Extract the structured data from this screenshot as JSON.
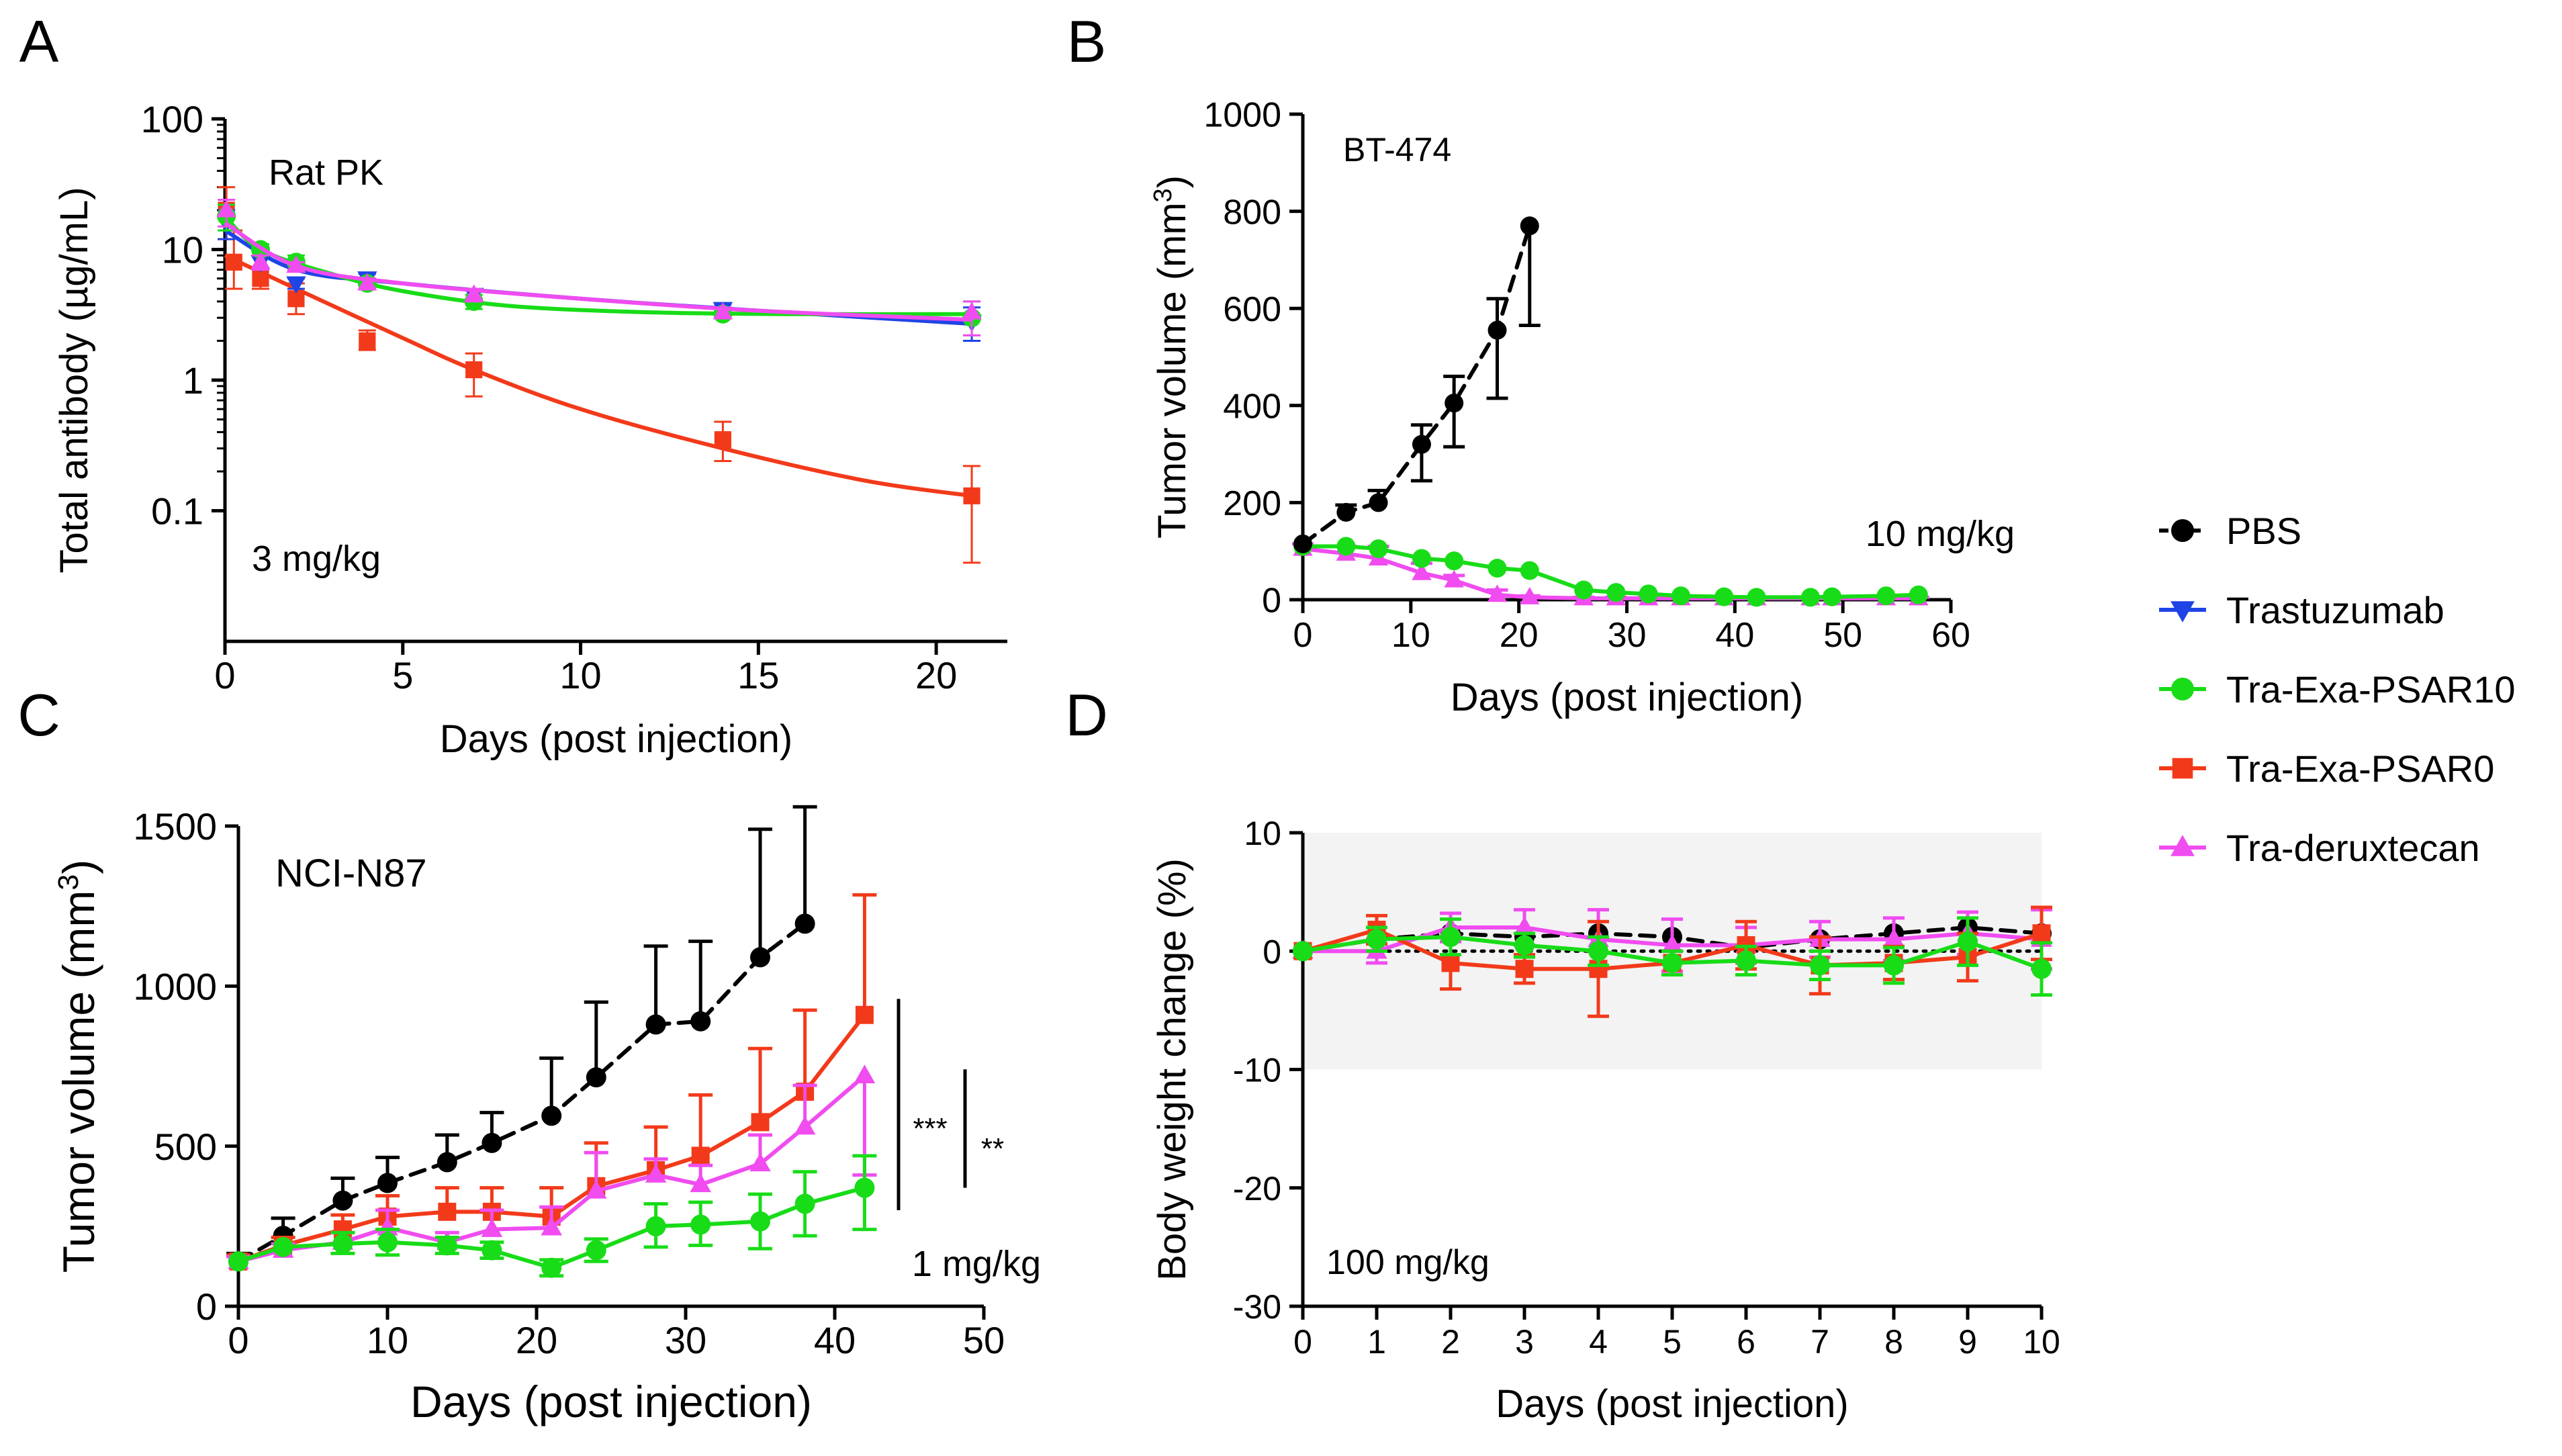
{
  "figure": {
    "series_colors": {
      "PBS": "#000000",
      "Trastuzumab": "#1f44e6",
      "Tra-Exa-PSAR10": "#18dc18",
      "Tra-Exa-PSAR0": "#f23a1a",
      "Tra-deruxtecan": "#f04cf0"
    },
    "legend": {
      "placement": "right-middle",
      "entries": [
        {
          "name": "PBS",
          "marker": "circle",
          "line": "dashed"
        },
        {
          "name": "Trastuzumab",
          "marker": "triangle-down",
          "line": "solid"
        },
        {
          "name": "Tra-Exa-PSAR10",
          "marker": "circle",
          "line": "solid"
        },
        {
          "name": "Tra-Exa-PSAR0",
          "marker": "square",
          "line": "solid"
        },
        {
          "name": "Tra-deruxtecan",
          "marker": "triangle-up",
          "line": "solid"
        }
      ]
    }
  },
  "chart_data": [
    {
      "panel": "A",
      "type": "scatter",
      "title": "Rat PK",
      "annotation": "3 mg/kg",
      "xlabel": "Days (post injection)",
      "ylabel": "Total antibody (µg/mL)",
      "xlim": [
        0,
        22
      ],
      "ylim": [
        0.01,
        100
      ],
      "yscale": "log",
      "xticks": [
        0,
        5,
        10,
        15,
        20
      ],
      "yticks": [
        0.1,
        1,
        10,
        100
      ],
      "ytick_labels": [
        "0.1",
        "1",
        "10",
        "100"
      ],
      "series": [
        {
          "name": "Tra-Exa-PSAR0",
          "marker": "square",
          "x": [
            0.04,
            0.25,
            1,
            2,
            4,
            7,
            14,
            21
          ],
          "y": [
            20,
            8,
            6,
            4.2,
            2,
            1.2,
            0.35,
            0.13
          ],
          "err": [
            [
              12,
              30
            ],
            [
              5,
              14
            ],
            [
              5,
              7
            ],
            [
              3.2,
              5.5
            ],
            [
              1.7,
              2.4
            ],
            [
              0.75,
              1.6
            ],
            [
              0.24,
              0.48
            ],
            [
              0.04,
              0.22
            ]
          ],
          "fit": [
            [
              0,
              9
            ],
            [
              2,
              5
            ],
            [
              5,
              2.1
            ],
            [
              7,
              1.2
            ],
            [
              10,
              0.6
            ],
            [
              14,
              0.3
            ],
            [
              18,
              0.17
            ],
            [
              21,
              0.13
            ]
          ]
        },
        {
          "name": "Trastuzumab",
          "marker": "triangle-down",
          "x": [
            0.04,
            1,
            2,
            4,
            7,
            14,
            21
          ],
          "y": [
            16,
            8,
            5.5,
            6,
            4.5,
            3.5,
            2.8
          ],
          "err": [
            [
              12,
              20
            ],
            [
              7,
              9
            ],
            [
              5,
              6
            ],
            [
              5.5,
              6.5
            ],
            [
              4,
              5
            ],
            [
              3.2,
              3.8
            ],
            [
              2,
              3.6
            ]
          ],
          "fit": [
            [
              0,
              14
            ],
            [
              2,
              7
            ],
            [
              5,
              5.5
            ],
            [
              10,
              4.2
            ],
            [
              15,
              3.4
            ],
            [
              21,
              2.7
            ]
          ]
        },
        {
          "name": "Tra-Exa-PSAR10",
          "marker": "circle",
          "x": [
            0.04,
            1,
            2,
            4,
            7,
            14,
            21
          ],
          "y": [
            18,
            10,
            8,
            5.5,
            4,
            3.2,
            3
          ],
          "err": [
            [
              14,
              22
            ],
            [
              9,
              11
            ],
            [
              7,
              9
            ],
            [
              5,
              6
            ],
            [
              3.5,
              4.5
            ],
            [
              3,
              3.6
            ],
            [
              2.2,
              4
            ]
          ],
          "fit": [
            [
              0,
              18
            ],
            [
              1,
              10
            ],
            [
              3,
              6.5
            ],
            [
              5,
              4.8
            ],
            [
              8,
              3.7
            ],
            [
              12,
              3.3
            ],
            [
              16,
              3.2
            ],
            [
              21,
              3.2
            ]
          ]
        },
        {
          "name": "Tra-deruxtecan",
          "marker": "triangle-up",
          "x": [
            0.04,
            1,
            2,
            4,
            7,
            14,
            21
          ],
          "y": [
            20,
            8,
            7.5,
            5.5,
            4.5,
            3.3,
            3.3
          ],
          "err": [
            [
              15,
              24
            ],
            [
              7,
              9
            ],
            [
              7,
              8
            ],
            [
              5,
              6
            ],
            [
              4,
              5
            ],
            [
              3,
              3.6
            ],
            [
              2.2,
              4
            ]
          ],
          "fit": [
            [
              0,
              16
            ],
            [
              2,
              7.5
            ],
            [
              5,
              5.5
            ],
            [
              10,
              4.2
            ],
            [
              15,
              3.4
            ],
            [
              21,
              2.9
            ]
          ]
        }
      ]
    },
    {
      "panel": "B",
      "type": "line",
      "title": "BT-474",
      "annotation": "10 mg/kg",
      "xlabel": "Days (post injection)",
      "ylabel": "Tumor volume (mm",
      "ylabel_sup": "3",
      "ylabel_close": ")",
      "xlim": [
        0,
        60
      ],
      "ylim": [
        0,
        1000
      ],
      "xticks": [
        0,
        10,
        20,
        30,
        40,
        50,
        60
      ],
      "yticks": [
        0,
        200,
        400,
        600,
        800,
        1000
      ],
      "series": [
        {
          "name": "PBS",
          "marker": "circle",
          "dashed": true,
          "x": [
            0,
            4,
            7,
            11,
            14,
            18,
            21
          ],
          "y": [
            115,
            180,
            200,
            320,
            405,
            555,
            770
          ],
          "err_hi": [
            0,
            195,
            225,
            360,
            460,
            620,
            0
          ],
          "err_lo": [
            0,
            0,
            0,
            245,
            315,
            415,
            565
          ]
        },
        {
          "name": "Tra-Exa-PSAR10",
          "marker": "circle",
          "x": [
            0,
            4,
            7,
            11,
            14,
            18,
            21,
            26,
            29,
            32,
            35,
            39,
            42,
            47,
            49,
            54,
            57
          ],
          "y": [
            110,
            110,
            105,
            85,
            80,
            65,
            60,
            20,
            15,
            12,
            8,
            6,
            5,
            5,
            6,
            8,
            10
          ]
        },
        {
          "name": "Tra-deruxtecan",
          "marker": "triangle-up",
          "x": [
            0,
            4,
            7,
            11,
            14,
            18,
            21,
            26,
            29,
            32,
            35,
            39,
            42,
            47,
            49,
            54,
            57
          ],
          "y": [
            105,
            95,
            85,
            55,
            40,
            10,
            5,
            3,
            3,
            3,
            3,
            3,
            3,
            3,
            3,
            3,
            3
          ],
          "err_hi": [
            115,
            110,
            110,
            75,
            50,
            20,
            8,
            5,
            5,
            5,
            5,
            5,
            5,
            5,
            5,
            5,
            5
          ]
        }
      ]
    },
    {
      "panel": "C",
      "type": "line",
      "title": "NCI-N87",
      "annotation": "1 mg/kg",
      "xlabel": "Days (post injection)",
      "ylabel": "Tumor volume (mm",
      "ylabel_sup": "3",
      "ylabel_close": ")",
      "xlim": [
        0,
        50
      ],
      "ylim": [
        0,
        1500
      ],
      "xticks": [
        0,
        10,
        20,
        30,
        40,
        50
      ],
      "yticks": [
        0,
        500,
        1000,
        1500
      ],
      "significance": [
        {
          "label": "***",
          "y_range": [
            300,
            960
          ]
        },
        {
          "label": "**",
          "y_range": [
            370,
            740
          ]
        }
      ],
      "series": [
        {
          "name": "PBS",
          "marker": "circle",
          "dashed": true,
          "x": [
            0,
            3,
            7,
            10,
            14,
            17,
            21,
            24,
            28,
            31,
            35,
            38
          ],
          "y": [
            140,
            220,
            330,
            385,
            450,
            510,
            595,
            715,
            880,
            890,
            1090,
            1195
          ],
          "err_hi": [
            165,
            275,
            400,
            465,
            535,
            605,
            775,
            950,
            1125,
            1140,
            1490,
            1560
          ]
        },
        {
          "name": "Tra-Exa-PSAR0",
          "marker": "square",
          "x": [
            0,
            3,
            7,
            10,
            14,
            17,
            21,
            24,
            28,
            31,
            35,
            38,
            42
          ],
          "y": [
            140,
            190,
            240,
            280,
            295,
            295,
            280,
            375,
            425,
            470,
            575,
            670,
            910
          ],
          "err_hi": [
            160,
            215,
            285,
            345,
            370,
            370,
            370,
            510,
            560,
            660,
            805,
            925,
            1285
          ]
        },
        {
          "name": "Tra-deruxtecan",
          "marker": "triangle-up",
          "x": [
            0,
            3,
            7,
            10,
            14,
            17,
            21,
            24,
            28,
            31,
            35,
            38,
            42
          ],
          "y": [
            140,
            175,
            200,
            245,
            200,
            240,
            245,
            360,
            410,
            380,
            445,
            560,
            720
          ],
          "err_hi": [
            155,
            195,
            230,
            300,
            230,
            300,
            310,
            480,
            460,
            440,
            535,
            690,
            0
          ],
          "err_lo": [
            0,
            0,
            0,
            0,
            0,
            0,
            0,
            0,
            0,
            0,
            0,
            0,
            410
          ]
        },
        {
          "name": "Tra-Exa-PSAR10",
          "marker": "circle",
          "x": [
            0,
            3,
            7,
            10,
            14,
            17,
            21,
            24,
            28,
            31,
            35,
            38,
            42
          ],
          "y": [
            140,
            185,
            195,
            200,
            190,
            175,
            120,
            175,
            250,
            255,
            265,
            320,
            370
          ],
          "err_hi": [
            0,
            0,
            230,
            240,
            215,
            200,
            145,
            210,
            320,
            325,
            350,
            420,
            470
          ],
          "err_lo": [
            0,
            0,
            165,
            160,
            165,
            150,
            95,
            140,
            185,
            190,
            180,
            220,
            240
          ]
        }
      ]
    },
    {
      "panel": "D",
      "type": "line",
      "title": "",
      "annotation": "100 mg/kg",
      "xlabel": "Days (post injection)",
      "ylabel": "Body weight change (%)",
      "xlim": [
        0,
        10
      ],
      "ylim": [
        -30,
        10
      ],
      "xticks": [
        0,
        1,
        2,
        3,
        4,
        5,
        6,
        7,
        8,
        9,
        10
      ],
      "yticks": [
        -30,
        -20,
        -10,
        0,
        10
      ],
      "shaded_band": [
        -10,
        10
      ],
      "reference_line": 0,
      "series": [
        {
          "name": "PBS",
          "marker": "circle",
          "dashed": true,
          "x": [
            0,
            1,
            2,
            3,
            4,
            5,
            6,
            7,
            8,
            9,
            10
          ],
          "y": [
            0,
            1.0,
            1.5,
            1.2,
            1.5,
            1.2,
            0.3,
            1.0,
            1.5,
            2.0,
            1.5
          ]
        },
        {
          "name": "Tra-Exa-PSAR0",
          "marker": "square",
          "x": [
            0,
            1,
            2,
            3,
            4,
            5,
            6,
            7,
            8,
            9,
            10
          ],
          "y": [
            0,
            1.8,
            -1.0,
            -1.5,
            -1.5,
            -1.0,
            0.5,
            -1.2,
            -1.0,
            -0.5,
            1.5
          ],
          "err": [
            0,
            1.2,
            2.2,
            1.2,
            4.0,
            1.0,
            2.0,
            2.4,
            1.4,
            2.0,
            2.2
          ]
        },
        {
          "name": "Tra-deruxtecan",
          "marker": "triangle-up",
          "x": [
            0,
            1,
            2,
            3,
            4,
            5,
            6,
            7,
            8,
            9,
            10
          ],
          "y": [
            0,
            0,
            2.0,
            2.0,
            1.0,
            0.5,
            0.5,
            1.0,
            1.0,
            1.5,
            1.0
          ],
          "err": [
            0,
            1.0,
            1.2,
            1.5,
            2.5,
            2.2,
            1.5,
            1.5,
            1.8,
            1.8,
            2.5
          ]
        },
        {
          "name": "Tra-Exa-PSAR10",
          "marker": "circle",
          "x": [
            0,
            1,
            2,
            3,
            4,
            5,
            6,
            7,
            8,
            9,
            10
          ],
          "y": [
            0,
            1.0,
            1.2,
            0.5,
            0,
            -1.0,
            -0.8,
            -1.2,
            -1.2,
            0.8,
            -1.5
          ],
          "err": [
            0,
            1.0,
            1.5,
            1.0,
            1.2,
            1.0,
            1.2,
            1.2,
            1.5,
            2.0,
            2.2
          ]
        }
      ]
    }
  ]
}
